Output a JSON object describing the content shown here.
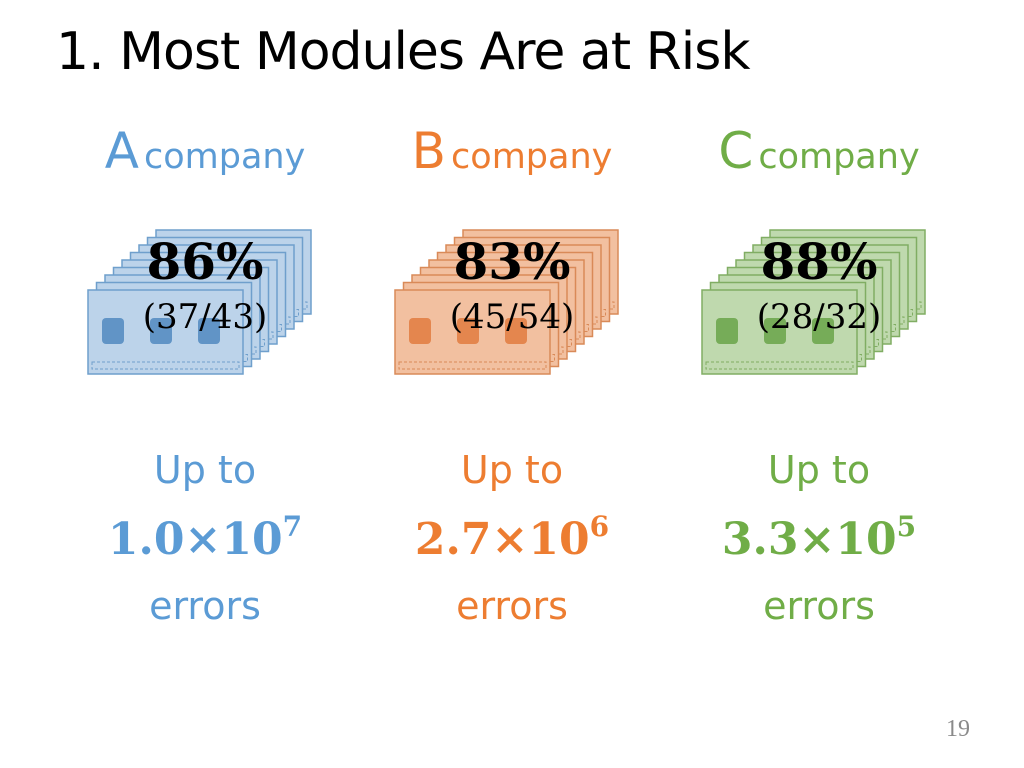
{
  "title": "1. Most Modules Are at Risk",
  "columns": [
    {
      "letter": "A",
      "word": "company",
      "percent": "86%",
      "ratio": "(37/43)",
      "up_to": "Up to",
      "mantissa": "1.0×10",
      "exponent": "7",
      "errors": "errors"
    },
    {
      "letter": "B",
      "word": "company",
      "percent": "83%",
      "ratio": "(45/54)",
      "up_to": "Up to",
      "mantissa": "2.7×10",
      "exponent": "6",
      "errors": "errors"
    },
    {
      "letter": "C",
      "word": "company",
      "percent": "88%",
      "ratio": "(28/32)",
      "up_to": "Up to",
      "mantissa": "3.3×10",
      "exponent": "5",
      "errors": "errors"
    }
  ],
  "page_number": "19"
}
